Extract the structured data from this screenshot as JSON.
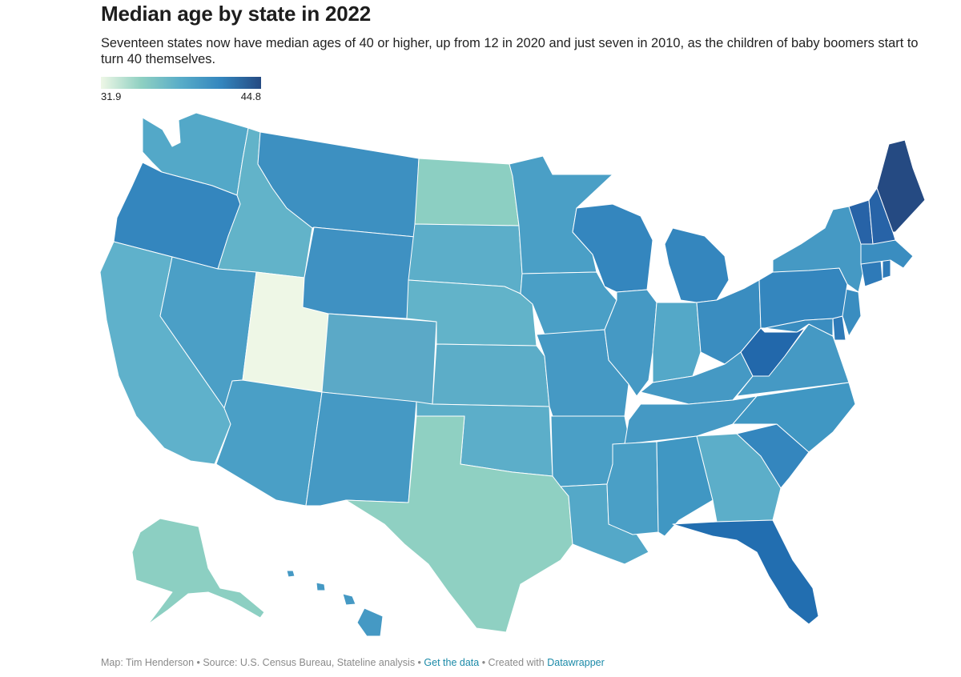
{
  "header": {
    "title": "Median age by state in 2022",
    "subtitle": "Seventeen states now have median ages of 40 or higher, up from 12 in 2020 and just seven in 2010, as the children of baby boomers start to turn 40 themselves."
  },
  "legend": {
    "min_label": "31.9",
    "max_label": "44.8",
    "colors": [
      "#eef7e6",
      "#8fd0c2",
      "#58acc8",
      "#3486be",
      "#254a82"
    ]
  },
  "map": {
    "type": "choropleth",
    "region": "United States",
    "states": [
      {
        "id": "WA",
        "color": "#53a8c8"
      },
      {
        "id": "OR",
        "color": "#3486be"
      },
      {
        "id": "CA",
        "color": "#5fb1cb"
      },
      {
        "id": "ID",
        "color": "#62b3c9"
      },
      {
        "id": "NV",
        "color": "#4b9fc6"
      },
      {
        "id": "UT",
        "color": "#eef7e6"
      },
      {
        "id": "AZ",
        "color": "#4a9fc6"
      },
      {
        "id": "MT",
        "color": "#3d90c1"
      },
      {
        "id": "WY",
        "color": "#3f91c2"
      },
      {
        "id": "CO",
        "color": "#5ba9c7"
      },
      {
        "id": "NM",
        "color": "#4599c4"
      },
      {
        "id": "ND",
        "color": "#8ccfc2"
      },
      {
        "id": "SD",
        "color": "#5caec9"
      },
      {
        "id": "NE",
        "color": "#62b3c9"
      },
      {
        "id": "KS",
        "color": "#5cadc8"
      },
      {
        "id": "OK",
        "color": "#5caec9"
      },
      {
        "id": "TX",
        "color": "#8fd0c2"
      },
      {
        "id": "MN",
        "color": "#4a9fc6"
      },
      {
        "id": "IA",
        "color": "#4a9fc6"
      },
      {
        "id": "MO",
        "color": "#4599c4"
      },
      {
        "id": "AR",
        "color": "#4a9fc6"
      },
      {
        "id": "LA",
        "color": "#54a8c8"
      },
      {
        "id": "WI",
        "color": "#3486be"
      },
      {
        "id": "IL",
        "color": "#4599c4"
      },
      {
        "id": "MI",
        "color": "#3486be"
      },
      {
        "id": "IN",
        "color": "#54a8c8"
      },
      {
        "id": "OH",
        "color": "#3a8dc0"
      },
      {
        "id": "KY",
        "color": "#4599c4"
      },
      {
        "id": "TN",
        "color": "#4599c4"
      },
      {
        "id": "MS",
        "color": "#4a9fc6"
      },
      {
        "id": "AL",
        "color": "#4097c3"
      },
      {
        "id": "GA",
        "color": "#5caec9"
      },
      {
        "id": "FL",
        "color": "#226eb0"
      },
      {
        "id": "SC",
        "color": "#3486be"
      },
      {
        "id": "NC",
        "color": "#4097c3"
      },
      {
        "id": "VA",
        "color": "#4599c4"
      },
      {
        "id": "WV",
        "color": "#2268ab"
      },
      {
        "id": "MD",
        "color": "#3a8dc0"
      },
      {
        "id": "DE",
        "color": "#2e7ab8"
      },
      {
        "id": "NJ",
        "color": "#3a8dc0"
      },
      {
        "id": "PA",
        "color": "#3486be"
      },
      {
        "id": "NY",
        "color": "#4599c4"
      },
      {
        "id": "CT",
        "color": "#2e7ab8"
      },
      {
        "id": "RI",
        "color": "#2e7ab8"
      },
      {
        "id": "MA",
        "color": "#3a8dc0"
      },
      {
        "id": "VT",
        "color": "#2763a7"
      },
      {
        "id": "NH",
        "color": "#2763a7"
      },
      {
        "id": "ME",
        "color": "#254a82"
      },
      {
        "id": "AK",
        "color": "#8ccfc2"
      },
      {
        "id": "HI",
        "color": "#4599c4"
      }
    ]
  },
  "footer": {
    "credit": "Map: Tim Henderson • Source: U.S. Census Bureau, Stateline analysis •",
    "get_data": "Get the data",
    "created_with": "• Created with",
    "datawrapper": "Datawrapper"
  }
}
